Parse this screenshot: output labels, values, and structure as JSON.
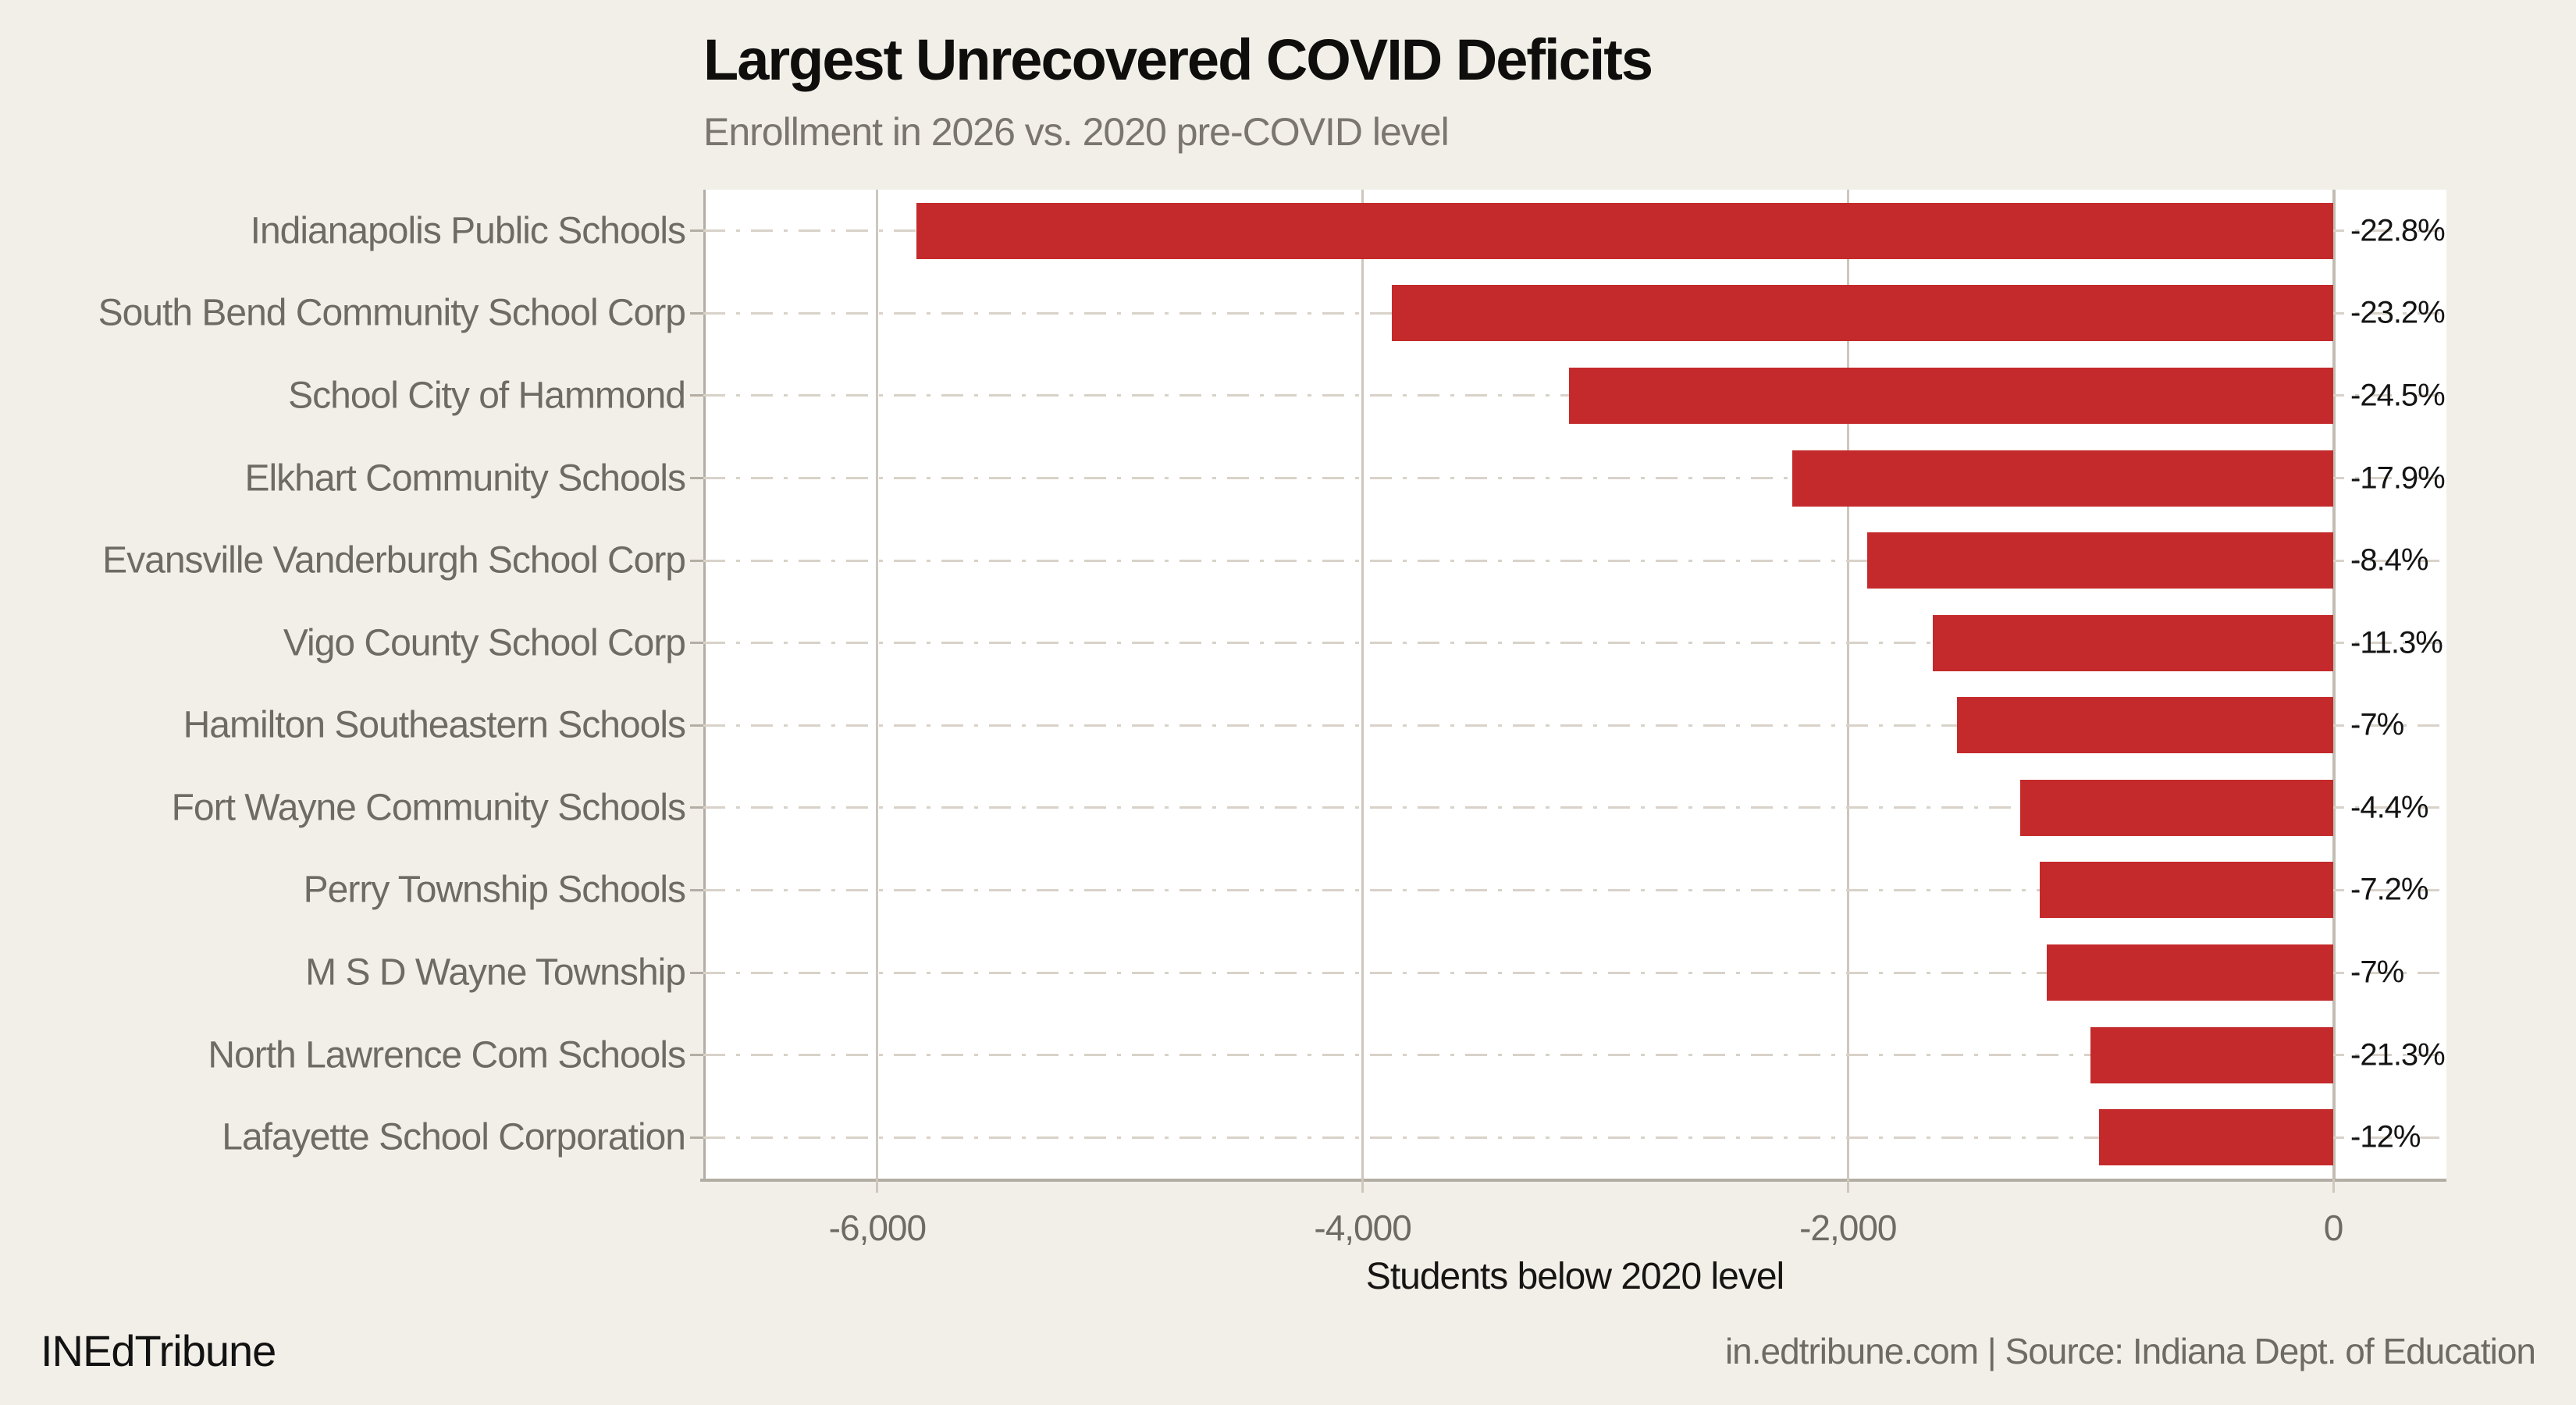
{
  "title": "Largest Unrecovered COVID Deficits",
  "subtitle": "Enrollment in 2026 vs. 2020 pre-COVID level",
  "footer": {
    "brand": "INEdTribune",
    "source": "in.edtribune.com | Source: Indiana Dept. of Education"
  },
  "colors": {
    "background": "#f2efe9",
    "plot_background": "#ffffff",
    "bar": "#c42a2b",
    "grid_vertical": "#cdc7bd",
    "grid_horizontal": "#d8d2c9",
    "zero_line": "#c2bcb2",
    "spine": "#b3ada4",
    "text_dark": "#141414",
    "text_gray": "#6e6a64"
  },
  "chart_data": {
    "type": "bar",
    "orientation": "horizontal",
    "title": "Largest Unrecovered COVID Deficits",
    "subtitle": "Enrollment in 2026 vs. 2020 pre-COVID level",
    "xlabel": "Students below 2020 level",
    "xlim": [
      -6720,
      465
    ],
    "legend": "none",
    "grid": {
      "vertical": "solid light lines at each x tick",
      "horizontal": "dash-dot light line at each category center"
    },
    "xticks": [
      {
        "value": -6000,
        "label": "-6,000"
      },
      {
        "value": -4000,
        "label": "-4,000"
      },
      {
        "value": -2000,
        "label": "-2,000"
      },
      {
        "value": 0,
        "label": "0"
      }
    ],
    "bar_color": "#c42a2b",
    "categories": [
      "Indianapolis Public Schools",
      "South Bend Community School Corp",
      "School City of Hammond",
      "Elkhart Community Schools",
      "Evansville Vanderburgh School Corp",
      "Vigo County School Corp",
      "Hamilton Southeastern Schools",
      "Fort Wayne Community Schools",
      "Perry Township Schools",
      "M S D Wayne Township",
      "North Lawrence Com Schools",
      "Lafayette School Corporation"
    ],
    "values": [
      -5840,
      -3880,
      -3150,
      -2230,
      -1920,
      -1650,
      -1550,
      -1290,
      -1210,
      -1180,
      -1000,
      -965
    ],
    "bar_labels": [
      "-22.8%",
      "-23.2%",
      "-24.5%",
      "-17.9%",
      "-8.4%",
      "-11.3%",
      "-7%",
      "-4.4%",
      "-7.2%",
      "-7%",
      "-21.3%",
      "-12%"
    ]
  }
}
